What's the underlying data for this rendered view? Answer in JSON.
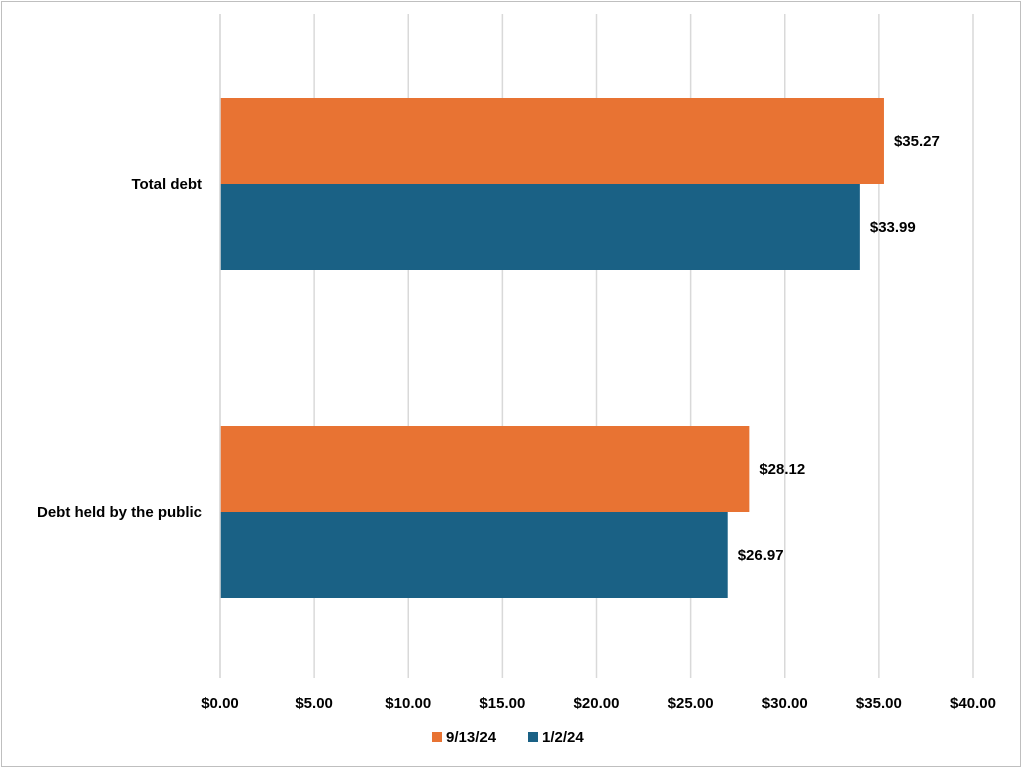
{
  "chart_data": {
    "type": "bar",
    "orientation": "horizontal",
    "title": "",
    "xlabel": "",
    "ylabel": "",
    "categories": [
      "Total debt",
      "Debt held by the public"
    ],
    "series": [
      {
        "name": "9/13/24",
        "color": "#E87333",
        "values": [
          35.27,
          28.12
        ],
        "labels": [
          "$35.27",
          "$28.12"
        ]
      },
      {
        "name": "1/2/24",
        "color": "#1A6185",
        "values": [
          33.99,
          26.97
        ],
        "labels": [
          "$33.99",
          "$26.97"
        ]
      }
    ],
    "xlim": [
      0,
      40
    ],
    "ticks": [
      0,
      5,
      10,
      15,
      20,
      25,
      30,
      35,
      40
    ],
    "tick_labels": [
      "$0.00",
      "$5.00",
      "$10.00",
      "$15.00",
      "$20.00",
      "$25.00",
      "$30.00",
      "$35.00",
      "$40.00"
    ],
    "grid": true,
    "legend": {
      "position": "bottom",
      "entries": [
        "9/13/24",
        "1/2/24"
      ]
    }
  }
}
